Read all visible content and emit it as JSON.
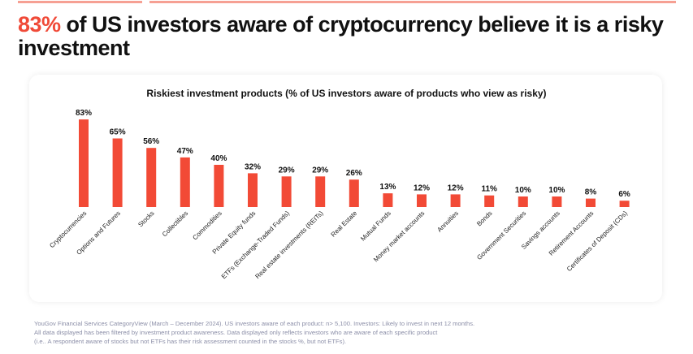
{
  "headline": {
    "highlight": "83%",
    "rest": " of US investors aware of cryptocurrency believe it is a risky investment"
  },
  "colors": {
    "accent": "#f04a38",
    "bar": "#f24a36",
    "top_rule": "#f6a093"
  },
  "chart_data": {
    "type": "bar",
    "title": "Riskiest investment products (% of US investors aware of products who view as risky)",
    "categories": [
      "Cryptocurrencies",
      "Options and Futures",
      "Stocks",
      "Collectibles",
      "Commodities",
      "Private Equity funds",
      "ETFs (Exchange-Traded Funds)",
      "Real estate investments (REITs)",
      "Real Estate",
      "Mutual Funds",
      "Money market accounts",
      "Annuities",
      "Bonds",
      "Government Securities",
      "Savings accounts",
      "Retirement Accounts",
      "Certificates of Deposit (CDs)"
    ],
    "values": [
      83,
      65,
      56,
      47,
      40,
      32,
      29,
      29,
      26,
      13,
      12,
      12,
      11,
      10,
      10,
      8,
      6
    ],
    "value_labels": [
      "83%",
      "65%",
      "56%",
      "47%",
      "40%",
      "32%",
      "29%",
      "29%",
      "26%",
      "13%",
      "12%",
      "12%",
      "11%",
      "10%",
      "10%",
      "8%",
      "6%"
    ],
    "ylim": [
      0,
      100
    ],
    "grid": false,
    "legend": "none"
  },
  "footnote": [
    "YouGov Financial Services CategoryView (March – December 2024). US investors aware of each product: n> 5,100. Investors: Likely to invest in next 12 months.",
    "All data displayed has been filtered by investment product awareness. Data displayed only reflects investors who are aware of each specific product",
    "(i.e.. A respondent aware of stocks but not ETFs has their risk assessment counted in the stocks %, but not ETFs)."
  ]
}
